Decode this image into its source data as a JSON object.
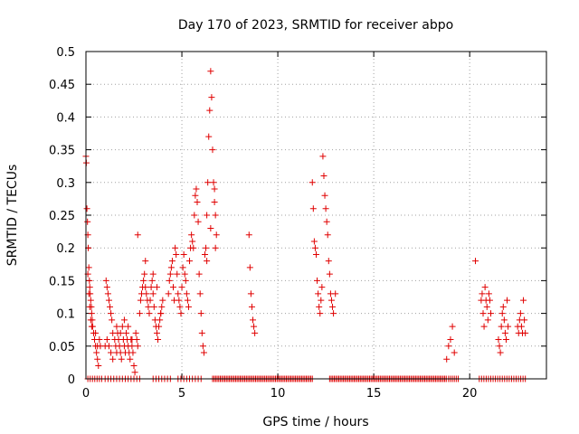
{
  "chart_data": {
    "type": "scatter",
    "title": "Day 170 of 2023, SRMTID for receiver abpo",
    "xlabel": "GPS time / hours",
    "ylabel": "SRMTID / TECUs",
    "xlim": [
      0,
      24
    ],
    "ylim": [
      0,
      0.5
    ],
    "x_ticks": [
      0,
      5,
      10,
      15,
      20
    ],
    "x_tick_labels": [
      "0",
      "5",
      "10",
      "15",
      "20"
    ],
    "y_ticks": [
      0,
      0.05,
      0.1,
      0.15,
      0.2,
      0.25,
      0.3,
      0.35,
      0.4,
      0.45,
      0.5
    ],
    "y_tick_labels": [
      "0",
      "0.05",
      "0.1",
      "0.15",
      "0.2",
      "0.25",
      "0.3",
      "0.35",
      "0.4",
      "0.45",
      "0.5"
    ],
    "grid": true,
    "marker": "+",
    "marker_color": "#e00000",
    "series": [
      {
        "name": "SRMTID",
        "points": [
          [
            0.0,
            0.34
          ],
          [
            0.02,
            0.33
          ],
          [
            0.05,
            0.26
          ],
          [
            0.08,
            0.24
          ],
          [
            0.1,
            0.22
          ],
          [
            0.12,
            0.2
          ],
          [
            0.15,
            0.17
          ],
          [
            0.18,
            0.15
          ],
          [
            0.2,
            0.14
          ],
          [
            0.22,
            0.13
          ],
          [
            0.25,
            0.12
          ],
          [
            0.28,
            0.11
          ],
          [
            0.3,
            0.1
          ],
          [
            0.33,
            0.09
          ],
          [
            0.35,
            0.08
          ],
          [
            0.4,
            0.07
          ],
          [
            0.45,
            0.06
          ],
          [
            0.5,
            0.05
          ],
          [
            0.55,
            0.04
          ],
          [
            0.6,
            0.03
          ],
          [
            0.65,
            0.02
          ],
          [
            0.7,
            0.06
          ],
          [
            0.75,
            0.05
          ],
          [
            0.1,
            0.16
          ],
          [
            0.15,
            0.13
          ],
          [
            0.2,
            0.11
          ],
          [
            0.25,
            0.09
          ],
          [
            0.3,
            0.08
          ],
          [
            0.5,
            0.07
          ],
          [
            0.6,
            0.05
          ],
          [
            1.0,
            0.05
          ],
          [
            1.05,
            0.15
          ],
          [
            1.1,
            0.14
          ],
          [
            1.15,
            0.13
          ],
          [
            1.2,
            0.12
          ],
          [
            1.25,
            0.11
          ],
          [
            1.3,
            0.1
          ],
          [
            1.35,
            0.09
          ],
          [
            1.4,
            0.07
          ],
          [
            1.1,
            0.06
          ],
          [
            1.2,
            0.05
          ],
          [
            1.3,
            0.04
          ],
          [
            1.4,
            0.03
          ],
          [
            1.5,
            0.06
          ],
          [
            1.55,
            0.05
          ],
          [
            1.6,
            0.04
          ],
          [
            1.65,
            0.07
          ],
          [
            1.7,
            0.06
          ],
          [
            1.75,
            0.05
          ],
          [
            1.8,
            0.04
          ],
          [
            1.85,
            0.03
          ],
          [
            1.9,
            0.08
          ],
          [
            1.95,
            0.06
          ],
          [
            2.0,
            0.05
          ],
          [
            2.05,
            0.04
          ],
          [
            2.1,
            0.07
          ],
          [
            2.15,
            0.06
          ],
          [
            2.2,
            0.05
          ],
          [
            2.25,
            0.04
          ],
          [
            2.3,
            0.03
          ],
          [
            2.35,
            0.06
          ],
          [
            2.4,
            0.05
          ],
          [
            2.45,
            0.04
          ],
          [
            2.5,
            0.02
          ],
          [
            2.55,
            0.01
          ],
          [
            2.6,
            0.07
          ],
          [
            2.65,
            0.06
          ],
          [
            2.7,
            0.05
          ],
          [
            1.6,
            0.08
          ],
          [
            1.8,
            0.07
          ],
          [
            2.0,
            0.09
          ],
          [
            2.2,
            0.08
          ],
          [
            2.4,
            0.06
          ],
          [
            2.7,
            0.22
          ],
          [
            2.8,
            0.1
          ],
          [
            2.85,
            0.12
          ],
          [
            2.9,
            0.13
          ],
          [
            2.95,
            0.14
          ],
          [
            3.0,
            0.15
          ],
          [
            3.05,
            0.16
          ],
          [
            3.1,
            0.14
          ],
          [
            3.15,
            0.13
          ],
          [
            3.2,
            0.12
          ],
          [
            3.25,
            0.11
          ],
          [
            3.3,
            0.1
          ],
          [
            3.35,
            0.12
          ],
          [
            3.4,
            0.14
          ],
          [
            3.45,
            0.15
          ],
          [
            3.5,
            0.13
          ],
          [
            3.55,
            0.11
          ],
          [
            3.6,
            0.09
          ],
          [
            3.65,
            0.08
          ],
          [
            3.7,
            0.07
          ],
          [
            3.75,
            0.06
          ],
          [
            3.8,
            0.08
          ],
          [
            3.85,
            0.09
          ],
          [
            3.9,
            0.1
          ],
          [
            3.95,
            0.11
          ],
          [
            4.0,
            0.12
          ],
          [
            3.1,
            0.18
          ],
          [
            3.5,
            0.16
          ],
          [
            3.7,
            0.14
          ],
          [
            3.9,
            0.1
          ],
          [
            4.3,
            0.13
          ],
          [
            4.35,
            0.15
          ],
          [
            4.4,
            0.16
          ],
          [
            4.45,
            0.17
          ],
          [
            4.5,
            0.18
          ],
          [
            4.55,
            0.14
          ],
          [
            4.6,
            0.12
          ],
          [
            4.65,
            0.2
          ],
          [
            4.7,
            0.19
          ],
          [
            4.75,
            0.16
          ],
          [
            4.8,
            0.13
          ],
          [
            4.85,
            0.12
          ],
          [
            4.9,
            0.11
          ],
          [
            4.95,
            0.1
          ],
          [
            5.0,
            0.14
          ],
          [
            5.05,
            0.17
          ],
          [
            5.1,
            0.19
          ],
          [
            5.15,
            0.16
          ],
          [
            5.2,
            0.15
          ],
          [
            5.25,
            0.13
          ],
          [
            5.3,
            0.12
          ],
          [
            5.35,
            0.11
          ],
          [
            5.4,
            0.18
          ],
          [
            5.45,
            0.2
          ],
          [
            5.5,
            0.22
          ],
          [
            5.55,
            0.21
          ],
          [
            5.6,
            0.2
          ],
          [
            5.65,
            0.25
          ],
          [
            5.7,
            0.28
          ],
          [
            5.75,
            0.29
          ],
          [
            5.8,
            0.27
          ],
          [
            5.85,
            0.24
          ],
          [
            5.9,
            0.16
          ],
          [
            5.95,
            0.13
          ],
          [
            6.0,
            0.1
          ],
          [
            6.05,
            0.07
          ],
          [
            6.1,
            0.05
          ],
          [
            6.15,
            0.04
          ],
          [
            6.2,
            0.19
          ],
          [
            6.25,
            0.2
          ],
          [
            6.3,
            0.25
          ],
          [
            6.35,
            0.3
          ],
          [
            6.4,
            0.37
          ],
          [
            6.45,
            0.41
          ],
          [
            6.5,
            0.47
          ],
          [
            6.55,
            0.43
          ],
          [
            6.6,
            0.35
          ],
          [
            6.65,
            0.3
          ],
          [
            6.7,
            0.27
          ],
          [
            6.75,
            0.25
          ],
          [
            6.8,
            0.22
          ],
          [
            6.3,
            0.18
          ],
          [
            6.5,
            0.23
          ],
          [
            6.7,
            0.29
          ],
          [
            6.75,
            0.2
          ],
          [
            8.5,
            0.22
          ],
          [
            8.55,
            0.17
          ],
          [
            8.6,
            0.13
          ],
          [
            8.65,
            0.11
          ],
          [
            8.7,
            0.09
          ],
          [
            8.75,
            0.08
          ],
          [
            8.8,
            0.07
          ],
          [
            11.8,
            0.3
          ],
          [
            11.85,
            0.26
          ],
          [
            11.9,
            0.21
          ],
          [
            11.95,
            0.2
          ],
          [
            12.0,
            0.19
          ],
          [
            12.05,
            0.15
          ],
          [
            12.1,
            0.13
          ],
          [
            12.15,
            0.11
          ],
          [
            12.2,
            0.1
          ],
          [
            12.25,
            0.12
          ],
          [
            12.3,
            0.14
          ],
          [
            12.35,
            0.34
          ],
          [
            12.4,
            0.31
          ],
          [
            12.45,
            0.28
          ],
          [
            12.5,
            0.26
          ],
          [
            12.55,
            0.24
          ],
          [
            12.6,
            0.22
          ],
          [
            12.65,
            0.18
          ],
          [
            12.7,
            0.16
          ],
          [
            12.75,
            0.13
          ],
          [
            12.8,
            0.12
          ],
          [
            12.85,
            0.11
          ],
          [
            12.9,
            0.1
          ],
          [
            13.0,
            0.13
          ],
          [
            18.8,
            0.03
          ],
          [
            18.9,
            0.05
          ],
          [
            19.0,
            0.06
          ],
          [
            19.1,
            0.08
          ],
          [
            19.2,
            0.04
          ],
          [
            20.3,
            0.18
          ],
          [
            20.6,
            0.12
          ],
          [
            20.65,
            0.13
          ],
          [
            20.7,
            0.1
          ],
          [
            20.75,
            0.08
          ],
          [
            20.8,
            0.14
          ],
          [
            20.85,
            0.12
          ],
          [
            20.9,
            0.11
          ],
          [
            20.95,
            0.09
          ],
          [
            21.0,
            0.13
          ],
          [
            21.05,
            0.12
          ],
          [
            21.1,
            0.1
          ],
          [
            21.5,
            0.06
          ],
          [
            21.55,
            0.05
          ],
          [
            21.6,
            0.04
          ],
          [
            21.65,
            0.08
          ],
          [
            21.7,
            0.1
          ],
          [
            21.75,
            0.11
          ],
          [
            21.8,
            0.09
          ],
          [
            21.85,
            0.07
          ],
          [
            21.9,
            0.06
          ],
          [
            21.95,
            0.12
          ],
          [
            22.0,
            0.08
          ],
          [
            22.5,
            0.08
          ],
          [
            22.55,
            0.07
          ],
          [
            22.6,
            0.09
          ],
          [
            22.65,
            0.1
          ],
          [
            22.7,
            0.08
          ],
          [
            22.75,
            0.07
          ],
          [
            22.8,
            0.12
          ],
          [
            22.85,
            0.09
          ],
          [
            22.9,
            0.07
          ]
        ]
      }
    ],
    "zero_runs": [
      [
        0.1,
        0.9,
        0.12
      ],
      [
        1.0,
        2.8,
        0.15
      ],
      [
        3.5,
        4.4,
        0.15
      ],
      [
        4.8,
        6.0,
        0.15
      ],
      [
        6.6,
        11.8,
        0.08
      ],
      [
        12.7,
        18.8,
        0.08
      ],
      [
        18.9,
        19.4,
        0.1
      ],
      [
        20.5,
        22.9,
        0.12
      ]
    ]
  }
}
